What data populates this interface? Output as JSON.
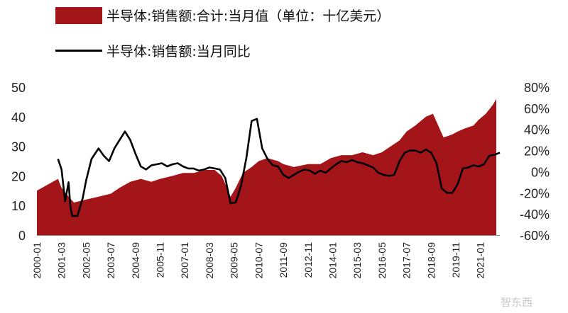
{
  "chart_data": {
    "type": "area",
    "series": [
      {
        "name": "半导体:销售额:合计:当月值（单位：十亿美元）",
        "kind": "area",
        "axis": "left",
        "color": "#a31518",
        "x": [
          "2000-01",
          "2000-07",
          "2001-01",
          "2001-03",
          "2001-07",
          "2001-10",
          "2002-05",
          "2002-12",
          "2003-07",
          "2003-12",
          "2004-06",
          "2004-12",
          "2005-06",
          "2005-11",
          "2006-06",
          "2006-12",
          "2007-06",
          "2008-01",
          "2008-06",
          "2008-10",
          "2009-01",
          "2009-03",
          "2009-06",
          "2009-10",
          "2010-03",
          "2010-07",
          "2010-12",
          "2011-06",
          "2011-09",
          "2012-03",
          "2012-11",
          "2013-06",
          "2013-12",
          "2014-06",
          "2014-12",
          "2015-06",
          "2015-12",
          "2016-05",
          "2016-10",
          "2017-03",
          "2017-07",
          "2017-12",
          "2018-06",
          "2018-10",
          "2019-01",
          "2019-04",
          "2019-09",
          "2019-12",
          "2020-04",
          "2020-09",
          "2020-12",
          "2021-04",
          "2021-08",
          "2021-10"
        ],
        "values": [
          15,
          17,
          19,
          16,
          13,
          11,
          12,
          13,
          14,
          16,
          18,
          19,
          18,
          19,
          20,
          21,
          21,
          22,
          22,
          20,
          16,
          13,
          16,
          21,
          23,
          25,
          26,
          25,
          24,
          23,
          24,
          24,
          26,
          27,
          27,
          28,
          27,
          28,
          30,
          32,
          35,
          37,
          40,
          41,
          37,
          33,
          34,
          35,
          36,
          37,
          39,
          41,
          44,
          46
        ]
      },
      {
        "name": "半导体:销售额:当月同比",
        "kind": "line",
        "axis": "right",
        "color": "#000000",
        "x": [
          "2001-01",
          "2001-03",
          "2001-05",
          "2001-07",
          "2001-08",
          "2001-09",
          "2001-12",
          "2002-03",
          "2002-05",
          "2002-08",
          "2002-12",
          "2003-03",
          "2003-06",
          "2003-09",
          "2003-12",
          "2004-03",
          "2004-06",
          "2004-09",
          "2004-12",
          "2005-03",
          "2005-06",
          "2005-09",
          "2005-12",
          "2006-03",
          "2006-06",
          "2006-09",
          "2006-12",
          "2007-03",
          "2007-06",
          "2007-09",
          "2007-12",
          "2008-03",
          "2008-06",
          "2008-09",
          "2008-12",
          "2009-03",
          "2009-06",
          "2009-09",
          "2009-12",
          "2010-03",
          "2010-06",
          "2010-09",
          "2010-12",
          "2011-03",
          "2011-06",
          "2011-09",
          "2011-12",
          "2012-03",
          "2012-06",
          "2012-09",
          "2012-12",
          "2013-03",
          "2013-06",
          "2013-09",
          "2013-12",
          "2014-03",
          "2014-06",
          "2014-09",
          "2014-12",
          "2015-03",
          "2015-06",
          "2015-09",
          "2015-12",
          "2016-03",
          "2016-06",
          "2016-09",
          "2016-12",
          "2017-03",
          "2017-06",
          "2017-09",
          "2017-12",
          "2018-03",
          "2018-06",
          "2018-09",
          "2018-12",
          "2019-03",
          "2019-06",
          "2019-09",
          "2019-12",
          "2020-03",
          "2020-06",
          "2020-09",
          "2020-12",
          "2021-03",
          "2021-06",
          "2021-09",
          "2021-12"
        ],
        "values": [
          12,
          2,
          -28,
          -10,
          -33,
          -42,
          -42,
          -25,
          -8,
          12,
          22,
          15,
          10,
          22,
          30,
          38,
          30,
          17,
          5,
          2,
          6,
          7,
          8,
          5,
          7,
          8,
          5,
          3,
          3,
          1,
          2,
          4,
          3,
          2,
          -6,
          -30,
          -29,
          -13,
          13,
          48,
          50,
          22,
          12,
          6,
          5,
          -3,
          -6,
          -3,
          0,
          2,
          1,
          -2,
          1,
          -1,
          3,
          7,
          10,
          9,
          11,
          9,
          8,
          6,
          4,
          -1,
          -3,
          -4,
          -3,
          10,
          18,
          20,
          20,
          18,
          21,
          18,
          8,
          -16,
          -20,
          -20,
          -12,
          3,
          4,
          6,
          5,
          7,
          15,
          16,
          18
        ]
      }
    ],
    "x_ticks": [
      "2000-01",
      "2001-03",
      "2002-05",
      "2003-07",
      "2004-09",
      "2005-11",
      "2007-01",
      "2008-03",
      "2009-05",
      "2010-07",
      "2011-09",
      "2012-11",
      "2014-01",
      "2015-03",
      "2016-05",
      "2017-07",
      "2018-09",
      "2019-11",
      "2021-01"
    ],
    "x_range": [
      "2000-01",
      "2021-12"
    ],
    "y_left": {
      "ticks": [
        "0",
        "10",
        "20",
        "30",
        "40",
        "50"
      ],
      "range": [
        0,
        50
      ]
    },
    "y_right": {
      "ticks": [
        "-60%",
        "-40%",
        "-20%",
        "0%",
        "20%",
        "40%",
        "60%",
        "80%"
      ],
      "range": [
        -60,
        80
      ]
    },
    "grid": false,
    "legend": "top"
  },
  "watermark": "智东西"
}
